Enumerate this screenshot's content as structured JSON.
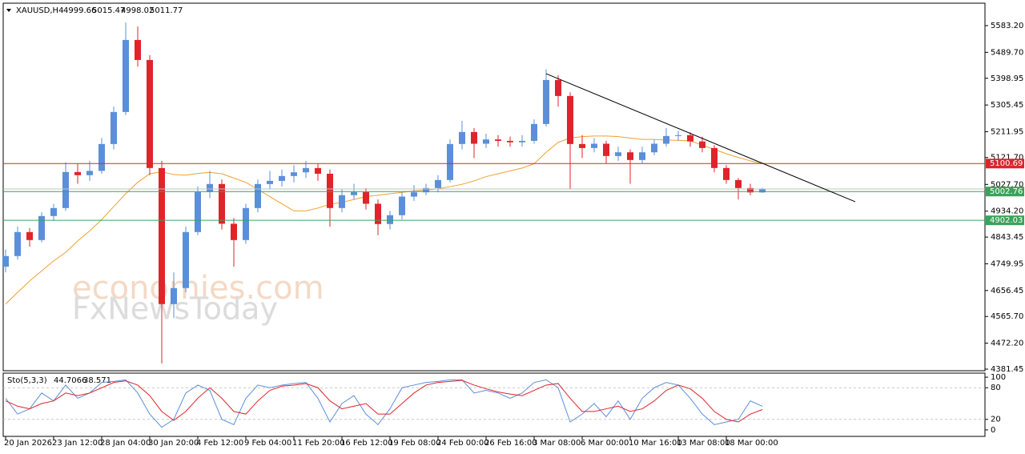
{
  "chart_data": [
    {
      "type": "candlestick",
      "title": "XAUUSD,H4",
      "categories": [
        "20 Jan 2026",
        null,
        null,
        null,
        "23 Jan 12:00",
        null,
        null,
        null,
        "28 Jan 04:00",
        null,
        null,
        null,
        "30 Jan 20:00",
        null,
        null,
        null,
        "4 Feb 12:00",
        null,
        null,
        null,
        "9 Feb 04:00",
        null,
        null,
        null,
        "11 Feb 20:00",
        null,
        null,
        null,
        "16 Feb 12:00",
        null,
        null,
        null,
        "19 Feb 08:00",
        null,
        null,
        null,
        "24 Feb 00:00",
        null,
        null,
        null,
        "26 Feb 16:00",
        null,
        null,
        null,
        "3 Mar 08:00",
        null,
        null,
        null,
        "6 Mar 00:00",
        null,
        null,
        null,
        "10 Mar 16:00",
        null,
        null,
        null,
        "13 Mar 08:00",
        null,
        null,
        null,
        "18 Mar 00:00",
        null,
        null,
        null
      ],
      "ohlc": [
        [
          4740,
          4800,
          4720,
          4777
        ],
        [
          4777,
          4880,
          4765,
          4861
        ],
        [
          4861,
          4875,
          4810,
          4833
        ],
        [
          4833,
          4930,
          4825,
          4917
        ],
        [
          4917,
          4960,
          4900,
          4945
        ],
        [
          4945,
          5105,
          4935,
          5071
        ],
        [
          5071,
          5100,
          5030,
          5060
        ],
        [
          5060,
          5110,
          5040,
          5075
        ],
        [
          5075,
          5190,
          5065,
          5169
        ],
        [
          5169,
          5300,
          5150,
          5281
        ],
        [
          5281,
          5594,
          5270,
          5533
        ],
        [
          5533,
          5580,
          5440,
          5463
        ],
        [
          5463,
          5480,
          5060,
          5085
        ],
        [
          5085,
          5110,
          4401,
          4609
        ],
        [
          4609,
          4720,
          4560,
          4665
        ],
        [
          4665,
          4880,
          4650,
          4861
        ],
        [
          4861,
          5020,
          4850,
          5001
        ],
        [
          5001,
          5075,
          4980,
          5029
        ],
        [
          5029,
          5045,
          4870,
          4890
        ],
        [
          4890,
          4910,
          4740,
          4833
        ],
        [
          4833,
          4960,
          4820,
          4945
        ],
        [
          4945,
          5045,
          4930,
          5029
        ],
        [
          5029,
          5075,
          5010,
          5040
        ],
        [
          5040,
          5080,
          5020,
          5057
        ],
        [
          5057,
          5095,
          5035,
          5070
        ],
        [
          5070,
          5110,
          5050,
          5085
        ],
        [
          5085,
          5100,
          5040,
          5065
        ],
        [
          5065,
          5080,
          4880,
          4945
        ],
        [
          4945,
          5010,
          4930,
          4990
        ],
        [
          4990,
          5030,
          4975,
          5001
        ],
        [
          5001,
          5015,
          4940,
          4960
        ],
        [
          4960,
          4975,
          4850,
          4889
        ],
        [
          4889,
          4935,
          4870,
          4920
        ],
        [
          4920,
          5000,
          4905,
          4985
        ],
        [
          4985,
          5025,
          4970,
          5000
        ],
        [
          5000,
          5030,
          4990,
          5015
        ],
        [
          5015,
          5060,
          5000,
          5043
        ],
        [
          5043,
          5185,
          5035,
          5169
        ],
        [
          5169,
          5250,
          5150,
          5211
        ],
        [
          5211,
          5225,
          5120,
          5170
        ],
        [
          5170,
          5205,
          5155,
          5185
        ],
        [
          5185,
          5200,
          5160,
          5180
        ],
        [
          5180,
          5195,
          5160,
          5175
        ],
        [
          5175,
          5200,
          5160,
          5180
        ],
        [
          5180,
          5255,
          5170,
          5239
        ],
        [
          5239,
          5430,
          5230,
          5393
        ],
        [
          5393,
          5410,
          5300,
          5337
        ],
        [
          5337,
          5350,
          5010,
          5169
        ],
        [
          5169,
          5200,
          5120,
          5155
        ],
        [
          5155,
          5190,
          5140,
          5170
        ],
        [
          5170,
          5180,
          5100,
          5127
        ],
        [
          5127,
          5160,
          5110,
          5140
        ],
        [
          5140,
          5150,
          5030,
          5113
        ],
        [
          5113,
          5160,
          5100,
          5140
        ],
        [
          5140,
          5185,
          5130,
          5170
        ],
        [
          5170,
          5225,
          5160,
          5197
        ],
        [
          5197,
          5215,
          5180,
          5200
        ],
        [
          5200,
          5210,
          5160,
          5178
        ],
        [
          5178,
          5195,
          5140,
          5155
        ],
        [
          5155,
          5165,
          5070,
          5085
        ],
        [
          5085,
          5095,
          5030,
          5043
        ],
        [
          5043,
          5050,
          4975,
          5015
        ],
        [
          5015,
          5030,
          4990,
          4999.66
        ],
        [
          4999.66,
          5015.47,
          4998.02,
          5011.77
        ]
      ],
      "up_color": "#5b8fd9",
      "down_color": "#e0242b",
      "ma": {
        "color": "#f0a030",
        "values": [
          4609,
          4650,
          4690,
          4725,
          4760,
          4790,
          4830,
          4865,
          4905,
          4950,
          4995,
          5035,
          5065,
          5072,
          5062,
          5060,
          5066,
          5070,
          5065,
          5050,
          5035,
          5010,
          4985,
          4960,
          4935,
          4935,
          4945,
          4958,
          4965,
          4975,
          4985,
          4990,
          4995,
          5000,
          5005,
          5008,
          5012,
          5020,
          5028,
          5040,
          5055,
          5065,
          5075,
          5085,
          5100,
          5140,
          5175,
          5190,
          5195,
          5197,
          5197,
          5195,
          5190,
          5185,
          5185,
          5183,
          5182,
          5180,
          5165,
          5150,
          5135,
          5122,
          5110,
          5100
        ]
      },
      "hlines": [
        {
          "value": 5100.69,
          "color": "#d9262c"
        },
        {
          "value": 5002.76,
          "color": "#3aa35a"
        },
        {
          "value": 4902.03,
          "color": "#3aa35a"
        }
      ],
      "trendline": [
        5415,
        4967
      ],
      "ylim": [
        4375.9,
        5661.6
      ],
      "yticks": [
        {
          "value": 5583.2,
          "label": "5583.20"
        },
        {
          "value": 5489.7,
          "label": "5489.70"
        },
        5398.95,
        5305.45,
        5211.95,
        {
          "value": 5121.7,
          "label": "5121.70"
        },
        {
          "value": 5027.7,
          "label": "5027.70"
        },
        {
          "value": 4934.2,
          "label": "4934.20"
        },
        4843.45,
        4749.95,
        4656.45,
        {
          "value": 4565.7,
          "label": "4565.70"
        },
        {
          "value": 4472.2,
          "label": "4472.20"
        },
        4381.45
      ],
      "watermark": [
        "economies.com",
        "FxNewsToday"
      ]
    },
    {
      "type": "line",
      "title": "Sto(5,3,3)",
      "series": [
        {
          "color": "#5b8fd9",
          "values": [
            60,
            30,
            40,
            70,
            55,
            85,
            60,
            70,
            90,
            92,
            95,
            70,
            30,
            5,
            20,
            70,
            85,
            75,
            20,
            10,
            60,
            85,
            80,
            85,
            88,
            90,
            60,
            15,
            50,
            65,
            30,
            10,
            40,
            80,
            85,
            90,
            92,
            95,
            95,
            70,
            75,
            70,
            60,
            70,
            90,
            95,
            80,
            15,
            30,
            50,
            25,
            55,
            20,
            60,
            80,
            90,
            85,
            60,
            30,
            10,
            15,
            20,
            55,
            44.7066
          ]
        },
        {
          "color": "#e0242b",
          "values": [
            55,
            45,
            40,
            50,
            55,
            70,
            65,
            70,
            80,
            90,
            93,
            85,
            65,
            35,
            18,
            35,
            60,
            80,
            60,
            35,
            30,
            55,
            75,
            83,
            85,
            88,
            80,
            55,
            40,
            45,
            50,
            30,
            30,
            50,
            70,
            85,
            90,
            92,
            94,
            85,
            78,
            72,
            68,
            65,
            75,
            85,
            88,
            60,
            35,
            35,
            40,
            45,
            35,
            40,
            55,
            75,
            85,
            78,
            60,
            35,
            20,
            15,
            30,
            38.571
          ]
        }
      ],
      "ylim": [
        -12.3,
        107.7
      ],
      "yticks": [
        100,
        80,
        20,
        0
      ]
    }
  ]
}
